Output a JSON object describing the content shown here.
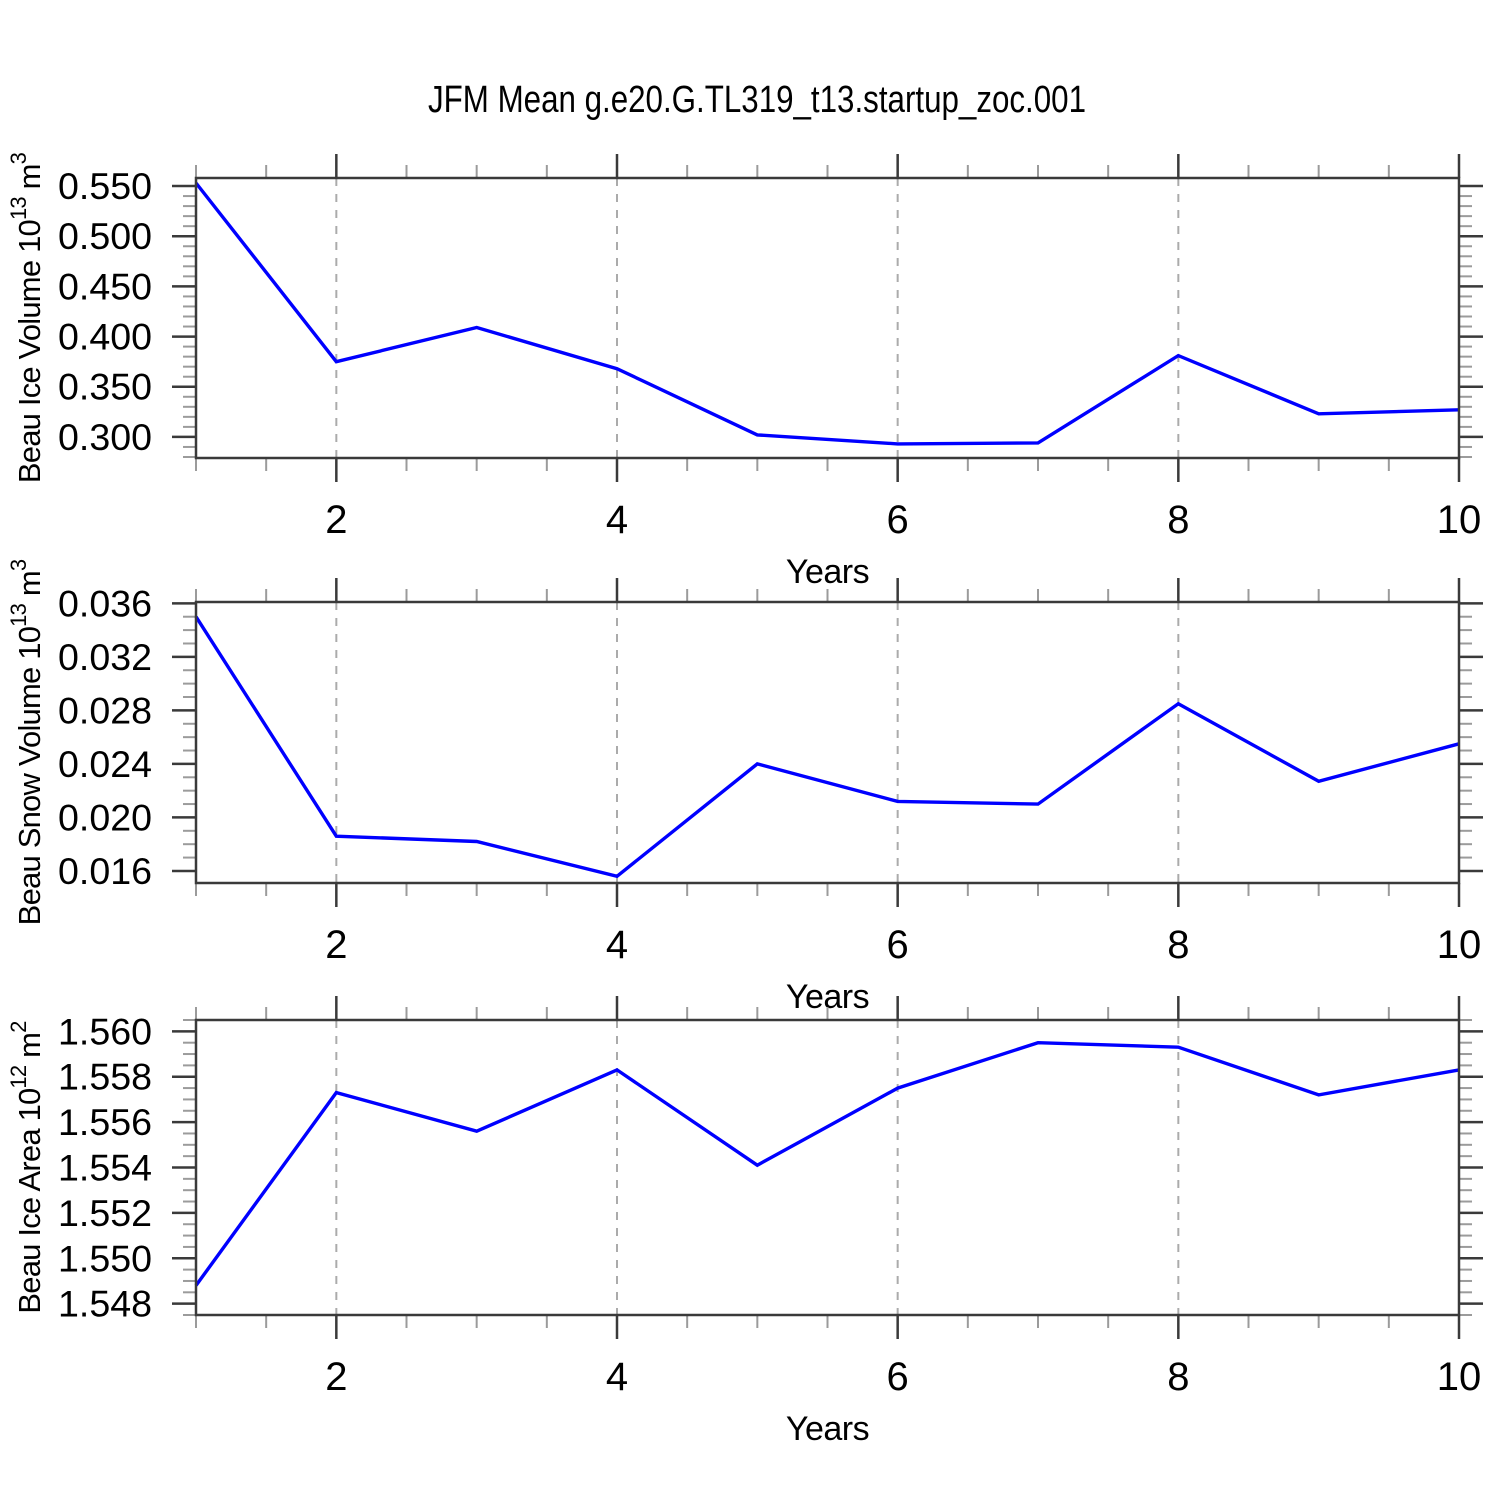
{
  "title": "JFM Mean g.e20.G.TL319_t13.startup_zoc.001",
  "colors": {
    "background": "#ffffff",
    "line": "#0000ff",
    "border": "#3a3a3a",
    "major_tick": "#3a3a3a",
    "minor_tick": "#9b9b9b",
    "grid": "#ababab",
    "text": "#000000"
  },
  "chart_data": [
    {
      "type": "line",
      "name": "beau-ice-volume",
      "ylabel": "Beau Ice Volume 10^13 m^3",
      "ylabel_segments": [
        {
          "t": "Beau Ice Volume 10"
        },
        {
          "t": "13",
          "sup": true
        },
        {
          "t": " m"
        },
        {
          "t": "3",
          "sup": true
        }
      ],
      "xlabel": "Years",
      "x": [
        1,
        2,
        3,
        4,
        5,
        6,
        7,
        8,
        9,
        10
      ],
      "values": [
        0.553,
        0.375,
        0.409,
        0.368,
        0.302,
        0.293,
        0.294,
        0.381,
        0.323,
        0.327
      ],
      "ylim": [
        0.279,
        0.558
      ],
      "yticks": [
        0.55,
        0.5,
        0.45,
        0.4,
        0.35,
        0.3
      ],
      "ytick_labels": [
        "0.550",
        "0.500",
        "0.450",
        "0.400",
        "0.350",
        "0.300"
      ],
      "y_minor_step": 0.01,
      "xlim": [
        1,
        10
      ],
      "xticks": [
        2,
        4,
        6,
        8,
        10
      ],
      "xtick_labels": [
        "2",
        "4",
        "6",
        "8",
        "10"
      ],
      "x_minor_step": 0.5,
      "grid_x": [
        2,
        4,
        6,
        8
      ]
    },
    {
      "type": "line",
      "name": "beau-snow-volume",
      "ylabel": "Beau Snow Volume 10^13 m^3",
      "ylabel_segments": [
        {
          "t": "Beau Snow Volume 10"
        },
        {
          "t": "13",
          "sup": true
        },
        {
          "t": " m"
        },
        {
          "t": "3",
          "sup": true
        }
      ],
      "xlabel": "Years",
      "x": [
        1,
        2,
        3,
        4,
        5,
        6,
        7,
        8,
        9,
        10
      ],
      "values": [
        0.035,
        0.0186,
        0.0182,
        0.0156,
        0.024,
        0.0212,
        0.021,
        0.0285,
        0.0227,
        0.0255
      ],
      "ylim": [
        0.0151,
        0.0361
      ],
      "yticks": [
        0.036,
        0.032,
        0.028,
        0.024,
        0.02,
        0.016
      ],
      "ytick_labels": [
        "0.036",
        "0.032",
        "0.028",
        "0.024",
        "0.020",
        "0.016"
      ],
      "y_minor_step": 0.001,
      "xlim": [
        1,
        10
      ],
      "xticks": [
        2,
        4,
        6,
        8,
        10
      ],
      "xtick_labels": [
        "2",
        "4",
        "6",
        "8",
        "10"
      ],
      "x_minor_step": 0.5,
      "grid_x": [
        2,
        4,
        6,
        8
      ]
    },
    {
      "type": "line",
      "name": "beau-ice-area",
      "ylabel": "Beau Ice Area 10^12 m^2",
      "ylabel_segments": [
        {
          "t": "Beau Ice Area 10"
        },
        {
          "t": "12",
          "sup": true
        },
        {
          "t": " m"
        },
        {
          "t": "2",
          "sup": true
        }
      ],
      "xlabel": "Years",
      "x": [
        1,
        2,
        3,
        4,
        5,
        6,
        7,
        8,
        9,
        10
      ],
      "values": [
        1.5488,
        1.5573,
        1.5556,
        1.5583,
        1.5541,
        1.5575,
        1.5595,
        1.5593,
        1.5572,
        1.5583
      ],
      "ylim": [
        1.5475,
        1.5605
      ],
      "yticks": [
        1.56,
        1.558,
        1.556,
        1.554,
        1.552,
        1.55,
        1.548
      ],
      "ytick_labels": [
        "1.560",
        "1.558",
        "1.556",
        "1.554",
        "1.552",
        "1.550",
        "1.548"
      ],
      "y_minor_step": 0.0005,
      "xlim": [
        1,
        10
      ],
      "xticks": [
        2,
        4,
        6,
        8,
        10
      ],
      "xtick_labels": [
        "2",
        "4",
        "6",
        "8",
        "10"
      ],
      "x_minor_step": 0.5,
      "grid_x": [
        2,
        4,
        6,
        8
      ]
    }
  ]
}
